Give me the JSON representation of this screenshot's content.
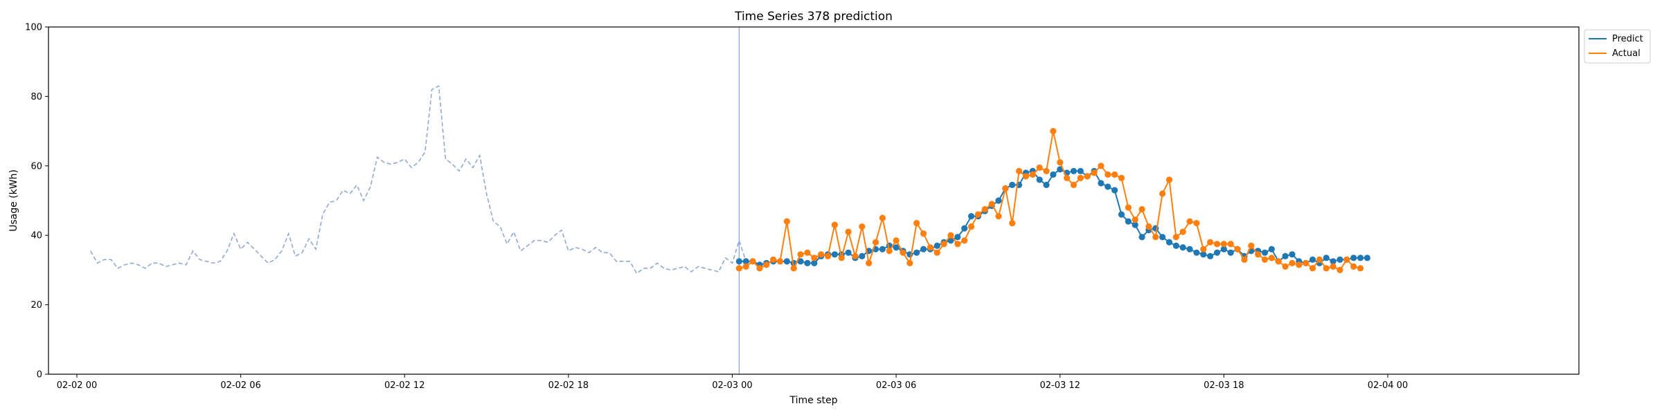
{
  "chart_data": {
    "type": "line",
    "title": "Time Series 378 prediction",
    "xlabel": "Time step",
    "ylabel": "Usage (kWh)",
    "ylim": [
      0,
      100
    ],
    "yticks": [
      0,
      20,
      40,
      60,
      80,
      100
    ],
    "xlim": [
      -1.04,
      55.0
    ],
    "xticks": [
      {
        "value": 0,
        "label": "02-02 00"
      },
      {
        "value": 6,
        "label": "02-02 06"
      },
      {
        "value": 12,
        "label": "02-02 12"
      },
      {
        "value": 18,
        "label": "02-02 18"
      },
      {
        "value": 24,
        "label": "02-03 00"
      },
      {
        "value": 30,
        "label": "02-03 06"
      },
      {
        "value": 36,
        "label": "02-03 12"
      },
      {
        "value": 42,
        "label": "02-03 18"
      },
      {
        "value": 48,
        "label": "02-04 00"
      }
    ],
    "forecast_start": 24.25,
    "legend_position": "outside-top-right",
    "colors": {
      "predict": "#1f77b4",
      "actual": "#ff7f0e",
      "history": "#8eaad0",
      "forecast_line": "#8eaad0"
    },
    "history": {
      "x_start": 0.5,
      "step": 0.25,
      "values": [
        35.5,
        32,
        33,
        33,
        30.5,
        31.5,
        32,
        31.5,
        30.5,
        32,
        32,
        31,
        31.5,
        32,
        31.5,
        35.5,
        33,
        32.5,
        32,
        32.5,
        35.5,
        40.5,
        36,
        38,
        36,
        34,
        32,
        33,
        35.5,
        40.5,
        34,
        35,
        39,
        36,
        46,
        49.5,
        50,
        53,
        52,
        54.5,
        50,
        54,
        62.5,
        61,
        60.5,
        61,
        62,
        59.5,
        61,
        64,
        82,
        83,
        62,
        60.5,
        58.5,
        62,
        59.5,
        63,
        52,
        44,
        42.5,
        37.5,
        41,
        35.5,
        37,
        38.5,
        38.5,
        38,
        40,
        41.5,
        35.5,
        36.5,
        36,
        35,
        36.5,
        35,
        35,
        32.5,
        32.5,
        32.5,
        29,
        30.5,
        30.5,
        32,
        30.5,
        30,
        30.5,
        31,
        29.5,
        31,
        30.5,
        30,
        29.5,
        33.5,
        32,
        38.5,
        32.5
      ]
    },
    "series": [
      {
        "name": "Predict",
        "x_start": 24.25,
        "step": 0.25,
        "values": [
          32.5,
          32.5,
          32.5,
          31.5,
          32,
          32.5,
          32.5,
          32.5,
          32,
          32.5,
          32,
          32,
          34,
          34.5,
          34.5,
          34.5,
          35,
          33.5,
          34,
          35.5,
          36,
          36,
          37,
          36.5,
          35.5,
          34.5,
          35,
          36,
          36,
          37,
          38,
          38.5,
          39.5,
          42,
          45.5,
          45.5,
          47,
          48.5,
          50,
          53.5,
          54.5,
          54.5,
          58,
          58.5,
          56,
          54.5,
          57.5,
          59,
          58,
          58.5,
          58.5,
          57,
          58.5,
          55,
          54,
          53,
          46,
          44,
          43,
          39.5,
          41.5,
          42,
          39.5,
          38,
          37,
          36.5,
          36,
          35,
          34.5,
          34,
          35,
          36,
          35,
          36,
          34,
          35.5,
          35.5,
          35,
          36,
          32.5,
          34,
          34.5,
          32.5,
          32,
          33,
          32,
          33.5,
          32.5,
          33,
          33,
          33.5,
          33.5,
          33.5
        ]
      },
      {
        "name": "Actual",
        "x_start": 24.25,
        "step": 0.25,
        "values": [
          30.5,
          31,
          32.5,
          30.5,
          31.5,
          33,
          32.5,
          44,
          30.5,
          34.5,
          35,
          33.5,
          34.5,
          34,
          43,
          33.5,
          41,
          34,
          42.5,
          32,
          38,
          45,
          35.5,
          38.5,
          35,
          32,
          43.5,
          40.5,
          36.5,
          35,
          37.5,
          40,
          37.5,
          38.5,
          42.5,
          46,
          47.5,
          49,
          45.5,
          53.5,
          43.5,
          58.5,
          57,
          57.5,
          59.5,
          58.5,
          70,
          61,
          56.5,
          54.5,
          56.5,
          57,
          58,
          60,
          57.5,
          57.5,
          56.5,
          48,
          44.5,
          47.5,
          42.5,
          39.5,
          52,
          56,
          39.5,
          41,
          44,
          43.5,
          36,
          38,
          37.5,
          37.5,
          37.5,
          36,
          33,
          37,
          34.5,
          33,
          33.5,
          32.5,
          31,
          32,
          31.5,
          32,
          30.5,
          33,
          30.5,
          31,
          30,
          33,
          31,
          30.5
        ]
      }
    ]
  }
}
